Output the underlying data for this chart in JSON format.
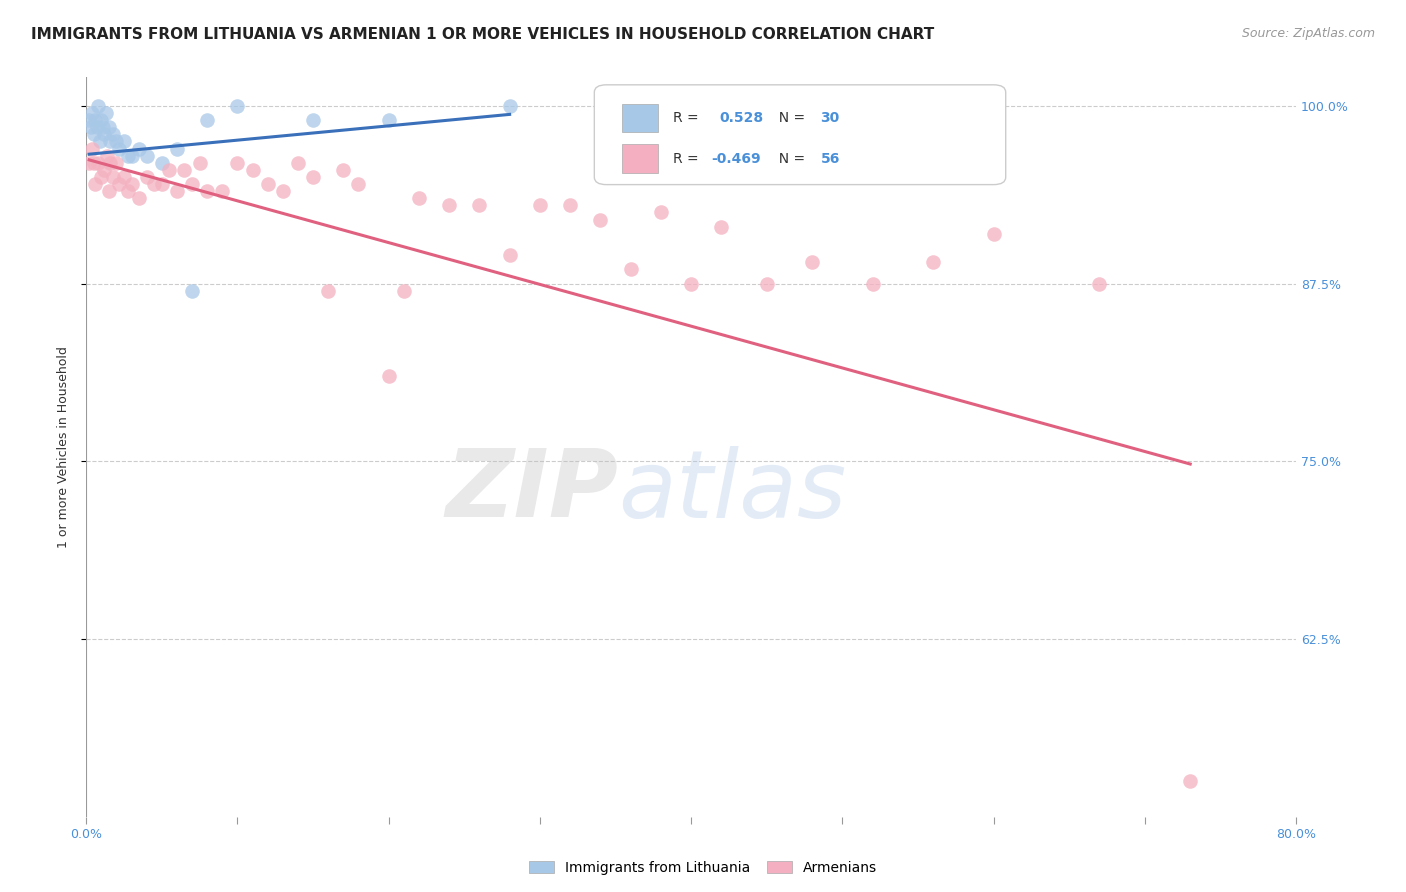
{
  "title": "IMMIGRANTS FROM LITHUANIA VS ARMENIAN 1 OR MORE VEHICLES IN HOUSEHOLD CORRELATION CHART",
  "source": "Source: ZipAtlas.com",
  "ylabel": "1 or more Vehicles in Household",
  "xlim": [
    0.0,
    0.8
  ],
  "ylim": [
    0.5,
    1.02
  ],
  "yticks": [
    0.625,
    0.75,
    0.875,
    1.0
  ],
  "ytick_labels": [
    "62.5%",
    "75.0%",
    "87.5%",
    "100.0%"
  ],
  "xticks": [
    0.0,
    0.1,
    0.2,
    0.3,
    0.4,
    0.5,
    0.6,
    0.7,
    0.8
  ],
  "legend_entries": [
    {
      "label": "Immigrants from Lithuania",
      "R": 0.528,
      "N": 30,
      "color": "#a8c8e8"
    },
    {
      "label": "Armenians",
      "R": -0.469,
      "N": 56,
      "color": "#f4b0c0"
    }
  ],
  "blue_scatter_x": [
    0.002,
    0.003,
    0.004,
    0.005,
    0.006,
    0.007,
    0.008,
    0.009,
    0.01,
    0.011,
    0.012,
    0.013,
    0.015,
    0.016,
    0.018,
    0.02,
    0.022,
    0.025,
    0.028,
    0.03,
    0.035,
    0.04,
    0.05,
    0.06,
    0.07,
    0.08,
    0.1,
    0.15,
    0.2,
    0.28
  ],
  "blue_scatter_y": [
    0.99,
    0.985,
    0.995,
    0.98,
    0.99,
    0.985,
    1.0,
    0.975,
    0.99,
    0.985,
    0.98,
    0.995,
    0.985,
    0.975,
    0.98,
    0.975,
    0.97,
    0.975,
    0.965,
    0.965,
    0.97,
    0.965,
    0.96,
    0.97,
    0.87,
    0.99,
    1.0,
    0.99,
    0.99,
    1.0
  ],
  "pink_scatter_x": [
    0.002,
    0.004,
    0.005,
    0.006,
    0.008,
    0.01,
    0.012,
    0.014,
    0.015,
    0.016,
    0.018,
    0.02,
    0.022,
    0.025,
    0.028,
    0.03,
    0.035,
    0.04,
    0.045,
    0.05,
    0.055,
    0.06,
    0.065,
    0.07,
    0.075,
    0.08,
    0.09,
    0.1,
    0.11,
    0.12,
    0.13,
    0.14,
    0.15,
    0.16,
    0.17,
    0.18,
    0.2,
    0.21,
    0.22,
    0.24,
    0.26,
    0.28,
    0.3,
    0.32,
    0.34,
    0.36,
    0.38,
    0.4,
    0.42,
    0.45,
    0.48,
    0.52,
    0.56,
    0.6,
    0.67,
    0.73
  ],
  "pink_scatter_y": [
    0.96,
    0.97,
    0.96,
    0.945,
    0.96,
    0.95,
    0.955,
    0.965,
    0.94,
    0.96,
    0.95,
    0.96,
    0.945,
    0.95,
    0.94,
    0.945,
    0.935,
    0.95,
    0.945,
    0.945,
    0.955,
    0.94,
    0.955,
    0.945,
    0.96,
    0.94,
    0.94,
    0.96,
    0.955,
    0.945,
    0.94,
    0.96,
    0.95,
    0.87,
    0.955,
    0.945,
    0.81,
    0.87,
    0.935,
    0.93,
    0.93,
    0.895,
    0.93,
    0.93,
    0.92,
    0.885,
    0.925,
    0.875,
    0.915,
    0.875,
    0.89,
    0.875,
    0.89,
    0.91,
    0.875,
    0.525
  ],
  "blue_line_x": [
    0.002,
    0.28
  ],
  "blue_line_y": [
    0.966,
    0.994
  ],
  "pink_line_x": [
    0.002,
    0.73
  ],
  "pink_line_y": [
    0.962,
    0.748
  ],
  "watermark_zip": "ZIP",
  "watermark_atlas": "atlas",
  "background_color": "#ffffff",
  "grid_color": "#cccccc",
  "title_fontsize": 11,
  "source_fontsize": 9,
  "axis_label_fontsize": 9,
  "tick_fontsize": 9
}
